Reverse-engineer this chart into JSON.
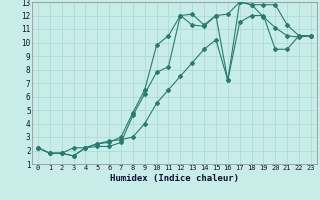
{
  "xlabel": "Humidex (Indice chaleur)",
  "bg_color": "#c8ece8",
  "grid_color": "#a8d8d4",
  "line_color": "#2a7a70",
  "xlim": [
    -0.5,
    23.5
  ],
  "ylim": [
    1,
    13
  ],
  "xticks": [
    0,
    1,
    2,
    3,
    4,
    5,
    6,
    7,
    8,
    9,
    10,
    11,
    12,
    13,
    14,
    15,
    16,
    17,
    18,
    19,
    20,
    21,
    22,
    23
  ],
  "yticks": [
    1,
    2,
    3,
    4,
    5,
    6,
    7,
    8,
    9,
    10,
    11,
    12,
    13
  ],
  "line1_x": [
    0,
    1,
    2,
    3,
    4,
    5,
    6,
    7,
    8,
    9,
    10,
    11,
    12,
    13,
    14,
    15,
    16,
    17,
    18,
    19,
    20,
    21,
    22,
    23
  ],
  "line1_y": [
    2.2,
    1.8,
    1.8,
    1.6,
    2.2,
    2.3,
    2.3,
    2.6,
    4.6,
    6.2,
    7.8,
    8.2,
    12.0,
    12.1,
    11.3,
    12.0,
    12.1,
    13.0,
    12.8,
    11.9,
    11.1,
    10.5,
    10.4,
    10.5
  ],
  "line2_x": [
    0,
    1,
    2,
    3,
    4,
    5,
    6,
    7,
    8,
    9,
    10,
    11,
    12,
    13,
    14,
    15,
    16,
    17,
    18,
    19,
    20,
    21,
    22,
    23
  ],
  "line2_y": [
    2.2,
    1.8,
    1.8,
    1.6,
    2.2,
    2.5,
    2.6,
    3.0,
    4.8,
    6.5,
    9.8,
    10.5,
    12.0,
    11.3,
    11.2,
    12.0,
    7.2,
    13.0,
    12.8,
    12.8,
    12.8,
    11.3,
    10.5,
    10.5
  ],
  "line3_x": [
    0,
    1,
    2,
    3,
    4,
    5,
    6,
    7,
    8,
    9,
    10,
    11,
    12,
    13,
    14,
    15,
    16,
    17,
    18,
    19,
    20,
    21,
    22,
    23
  ],
  "line3_y": [
    2.2,
    1.8,
    1.8,
    2.2,
    2.2,
    2.5,
    2.7,
    2.8,
    3.0,
    4.0,
    5.5,
    6.5,
    7.5,
    8.5,
    9.5,
    10.2,
    7.2,
    11.5,
    12.0,
    12.0,
    9.5,
    9.5,
    10.5,
    10.5
  ]
}
